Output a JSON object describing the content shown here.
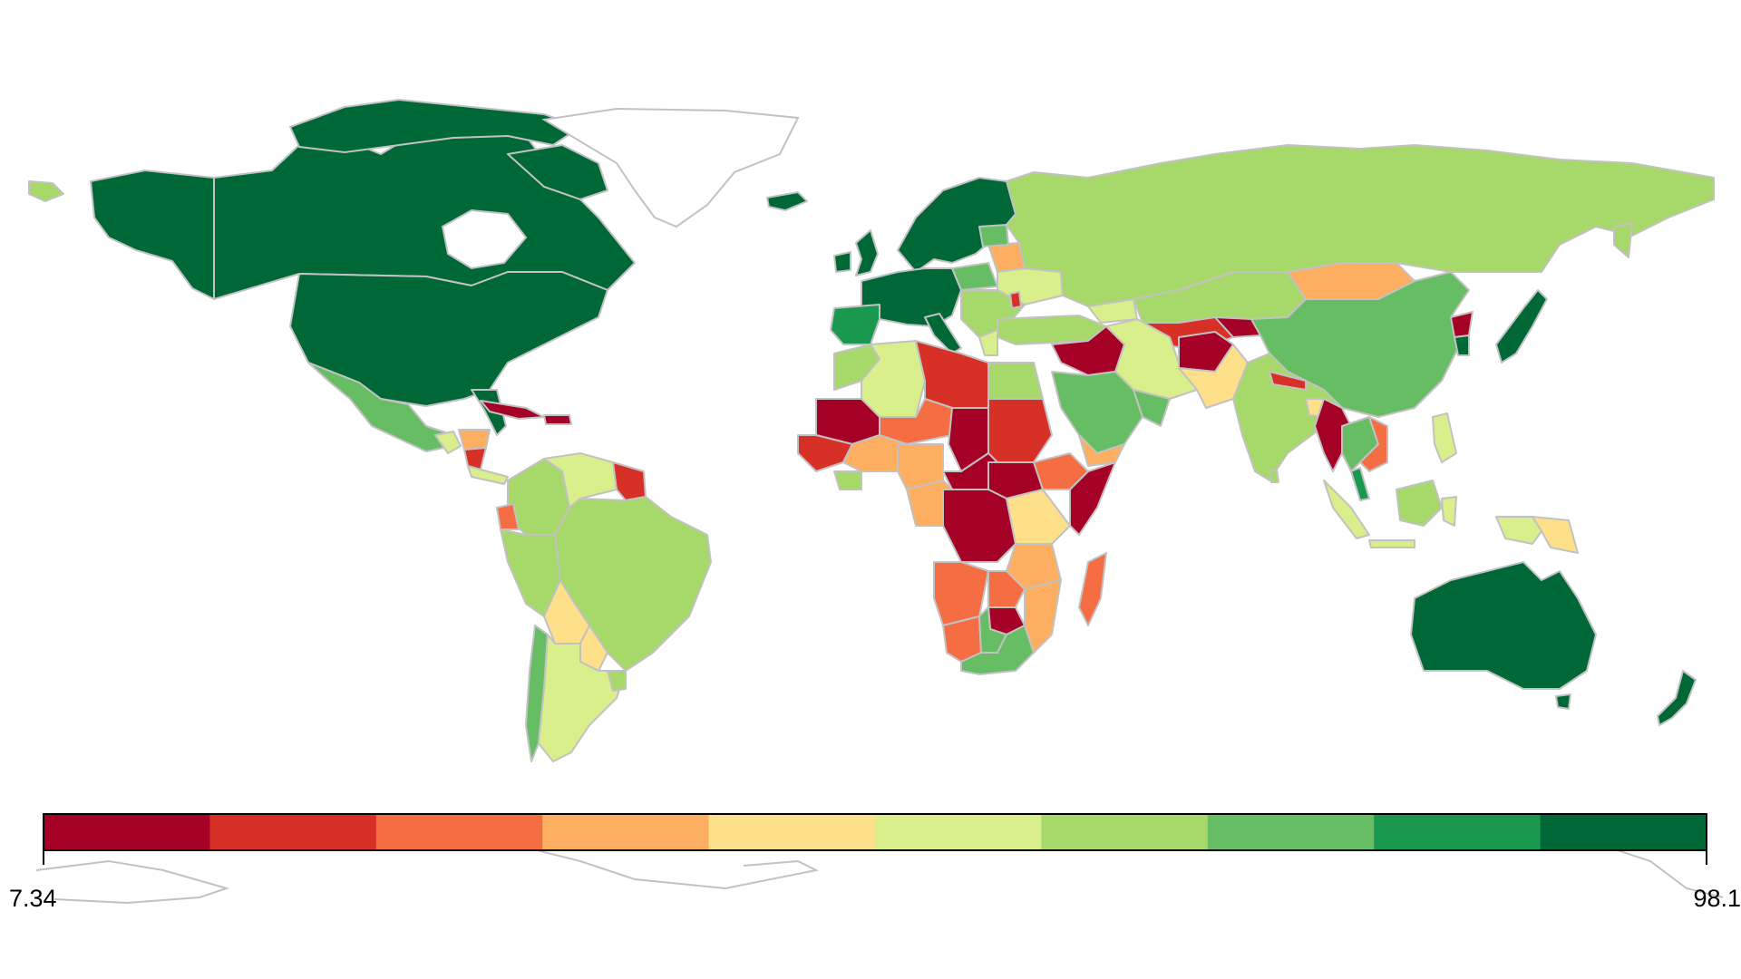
{
  "legend": {
    "min_label": "7.34",
    "max_label": "98.1",
    "min_value": 7.34,
    "max_value": 98.1,
    "scale_colors": [
      "#a50026",
      "#d73027",
      "#f46d43",
      "#fdae61",
      "#fee08b",
      "#d9ef8b",
      "#a6d96a",
      "#66bd63",
      "#1a9850",
      "#006837"
    ]
  },
  "colors": {
    "border": "#c2c2c2",
    "no_data": "#ffffff"
  }
}
